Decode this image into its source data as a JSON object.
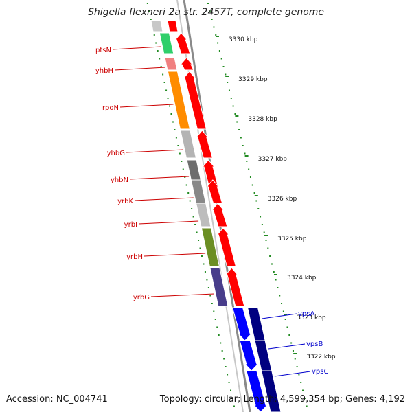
{
  "title": "Shigella flexneri 2a str. 2457T, complete genome",
  "footer": {
    "accession": "Accession: NC_004741",
    "topology": "Topology: circular; Length: 4,599,354 bp; Genes: 4,192"
  },
  "colors": {
    "forward_arrow": "#ff0000",
    "reverse_arrow_dark": "#000080",
    "reverse_arrow_light": "#0000ff",
    "tick": "#228b22",
    "label_red": "#cc0000",
    "label_blue": "#0000cc",
    "backbone": "#8a8a8a"
  },
  "scale_labels": [
    "3330 kbp",
    "3329 kbp",
    "3328 kbp",
    "3327 kbp",
    "3326 kbp",
    "3325 kbp",
    "3324 kbp",
    "3323 kbp",
    "3322 kbp"
  ],
  "genes_forward": [
    {
      "name": "ptsN",
      "color": "#2fcf6a"
    },
    {
      "name": "yhbH",
      "color": "#f08080"
    },
    {
      "name": "rpoN",
      "color": "#ff8c00"
    },
    {
      "name": "yhbG",
      "color": "#b4b4b4"
    },
    {
      "name": "yhbN",
      "color": "#6e6e6e"
    },
    {
      "name": "yrbK",
      "color": "#888888"
    },
    {
      "name": "yrbI",
      "color": "#bdbdbd"
    },
    {
      "name": "yrbH",
      "color": "#6b8e23"
    },
    {
      "name": "yrbG",
      "color": "#483d8b"
    }
  ],
  "genes_reverse": [
    {
      "name": "vpsA"
    },
    {
      "name": "vpsB"
    },
    {
      "name": "vpsC"
    }
  ]
}
